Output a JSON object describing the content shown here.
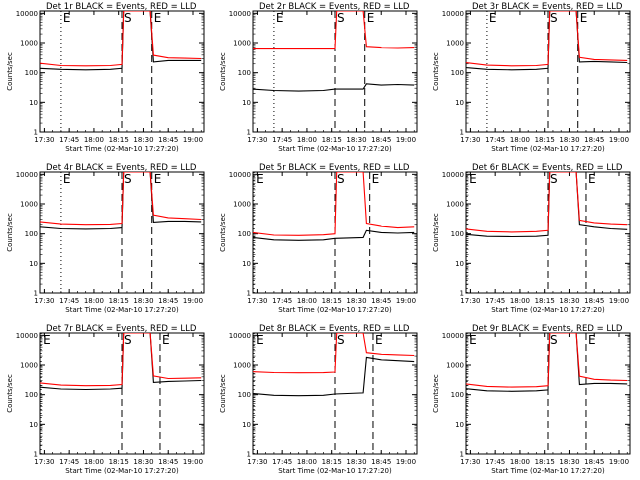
{
  "figure": {
    "colors": {
      "events": "#000000",
      "lld": "#ff0000",
      "axes": "#000000",
      "background": "#ffffff"
    },
    "xlabel": "Start Time (02-Mar-10 17:27:20)",
    "ylabel": "Counts/sec",
    "xticks": [
      "17:30",
      "17:45",
      "18:00",
      "18:15",
      "18:30",
      "18:45",
      "19:00"
    ],
    "yticks": [
      "1",
      "10",
      "100",
      "1000",
      "10000"
    ]
  },
  "chart_data": [
    {
      "type": "line",
      "title": "Det 1r BLACK = Events, RED = LLD",
      "x_range": [
        "17:27:20",
        "19:06:40"
      ],
      "y_range": [
        1,
        12000
      ],
      "y_scale": "log",
      "xticks": [
        "17:30",
        "17:45",
        "18:00",
        "18:15",
        "18:30",
        "18:45",
        "19:00"
      ],
      "yticks": [
        "1",
        "10",
        "100",
        "1000",
        "10000"
      ],
      "markers": {
        "E_1": "17:40",
        "S": "18:17",
        "E_2": "18:35"
      },
      "series": [
        {
          "name": "Events",
          "color": "#000000",
          "x": [
            "17:27",
            "17:40",
            "17:55",
            "18:10",
            "18:17",
            "18:18",
            "18:30",
            "18:34",
            "18:36",
            "18:45",
            "18:55",
            "19:05"
          ],
          "y": [
            140,
            130,
            125,
            130,
            140,
            12000,
            12000,
            12000,
            230,
            260,
            260,
            260
          ]
        },
        {
          "name": "LLD",
          "color": "#ff0000",
          "x": [
            "17:27",
            "17:40",
            "17:55",
            "18:10",
            "18:17",
            "18:18",
            "18:30",
            "18:34",
            "18:36",
            "18:45",
            "18:55",
            "19:05"
          ],
          "y": [
            210,
            175,
            170,
            175,
            190,
            12000,
            12000,
            12000,
            390,
            320,
            310,
            300
          ]
        }
      ]
    },
    {
      "type": "line",
      "title": "Det 2r BLACK = Events, RED = LLD",
      "x_range": [
        "17:27:20",
        "19:06:40"
      ],
      "y_range": [
        1,
        12000
      ],
      "y_scale": "log",
      "xticks": [
        "17:30",
        "17:45",
        "18:00",
        "18:15",
        "18:30",
        "18:45",
        "19:00"
      ],
      "yticks": [
        "1",
        "10",
        "100",
        "1000",
        "10000"
      ],
      "markers": {
        "E_1": "17:40",
        "S": "18:17",
        "E_2": "18:35"
      },
      "series": [
        {
          "name": "Events",
          "color": "#000000",
          "x": [
            "17:27",
            "17:40",
            "17:55",
            "18:10",
            "18:17",
            "18:34",
            "18:36",
            "18:45",
            "18:55",
            "19:05"
          ],
          "y": [
            28,
            25,
            24,
            25,
            28,
            28,
            42,
            38,
            40,
            38
          ]
        },
        {
          "name": "LLD",
          "color": "#ff0000",
          "x": [
            "17:27",
            "17:40",
            "17:55",
            "18:10",
            "18:17",
            "18:18",
            "18:30",
            "18:34",
            "18:36",
            "18:45",
            "18:55",
            "19:05"
          ],
          "y": [
            650,
            650,
            650,
            650,
            650,
            12000,
            12000,
            12000,
            750,
            700,
            680,
            700
          ]
        }
      ]
    },
    {
      "type": "line",
      "title": "Det 3r BLACK = Events, RED = LLD",
      "x_range": [
        "17:27:20",
        "19:06:40"
      ],
      "y_range": [
        1,
        12000
      ],
      "y_scale": "log",
      "xticks": [
        "17:30",
        "17:45",
        "18:00",
        "18:15",
        "18:30",
        "18:45",
        "19:00"
      ],
      "yticks": [
        "1",
        "10",
        "100",
        "1000",
        "10000"
      ],
      "markers": {
        "E_1": "17:40",
        "S": "18:17",
        "E_2": "18:35"
      },
      "series": [
        {
          "name": "Events",
          "color": "#000000",
          "x": [
            "17:27",
            "17:40",
            "17:55",
            "18:10",
            "18:17",
            "18:18",
            "18:30",
            "18:34",
            "18:36",
            "18:45",
            "18:55",
            "19:05"
          ],
          "y": [
            150,
            130,
            125,
            130,
            140,
            12000,
            12000,
            12000,
            230,
            240,
            230,
            220
          ]
        },
        {
          "name": "LLD",
          "color": "#ff0000",
          "x": [
            "17:27",
            "17:40",
            "17:55",
            "18:10",
            "18:17",
            "18:18",
            "18:30",
            "18:34",
            "18:36",
            "18:45",
            "18:55",
            "19:05"
          ],
          "y": [
            220,
            180,
            170,
            175,
            190,
            12000,
            12000,
            12000,
            330,
            280,
            270,
            260
          ]
        }
      ]
    },
    {
      "type": "line",
      "title": "Det 4r BLACK = Events, RED = LLD",
      "x_range": [
        "17:27:20",
        "19:06:40"
      ],
      "y_range": [
        1,
        12000
      ],
      "y_scale": "log",
      "xticks": [
        "17:30",
        "17:45",
        "18:00",
        "18:15",
        "18:30",
        "18:45",
        "19:00"
      ],
      "yticks": [
        "1",
        "10",
        "100",
        "1000",
        "10000"
      ],
      "markers": {
        "E_1": "17:40",
        "S": "18:17",
        "E_2": "18:35"
      },
      "series": [
        {
          "name": "Events",
          "color": "#000000",
          "x": [
            "17:27",
            "17:40",
            "17:55",
            "18:10",
            "18:17",
            "18:18",
            "18:30",
            "18:34",
            "18:36",
            "18:45",
            "18:55",
            "19:05"
          ],
          "y": [
            170,
            150,
            145,
            150,
            160,
            12000,
            12000,
            12000,
            240,
            260,
            260,
            250
          ]
        },
        {
          "name": "LLD",
          "color": "#ff0000",
          "x": [
            "17:27",
            "17:40",
            "17:55",
            "18:10",
            "18:17",
            "18:18",
            "18:30",
            "18:34",
            "18:36",
            "18:45",
            "18:55",
            "19:05"
          ],
          "y": [
            250,
            210,
            200,
            205,
            220,
            12000,
            12000,
            12000,
            420,
            340,
            320,
            300
          ]
        }
      ]
    },
    {
      "type": "line",
      "title": "Det 5r BLACK = Events, RED = LLD",
      "x_range": [
        "17:27:20",
        "19:06:40"
      ],
      "y_range": [
        1,
        12000
      ],
      "y_scale": "log",
      "xticks": [
        "17:30",
        "17:45",
        "18:00",
        "18:15",
        "18:30",
        "18:45",
        "19:00"
      ],
      "yticks": [
        "1",
        "10",
        "100",
        "1000",
        "10000"
      ],
      "markers": {
        "E_1": "17:28",
        "S": "18:17",
        "E_2": "18:38"
      },
      "series": [
        {
          "name": "Events",
          "color": "#000000",
          "x": [
            "17:27",
            "17:40",
            "17:55",
            "18:10",
            "18:17",
            "18:34",
            "18:36",
            "18:45",
            "18:55",
            "19:05"
          ],
          "y": [
            75,
            62,
            60,
            62,
            70,
            75,
            130,
            110,
            105,
            110
          ]
        },
        {
          "name": "LLD",
          "color": "#ff0000",
          "x": [
            "17:27",
            "17:40",
            "17:55",
            "18:10",
            "18:17",
            "18:18",
            "18:30",
            "18:34",
            "18:36",
            "18:45",
            "18:55",
            "19:05"
          ],
          "y": [
            110,
            90,
            88,
            92,
            100,
            12000,
            12000,
            12000,
            220,
            180,
            160,
            170
          ]
        }
      ]
    },
    {
      "type": "line",
      "title": "Det 6r BLACK = Events, RED = LLD",
      "x_range": [
        "17:27:20",
        "19:06:40"
      ],
      "y_range": [
        1,
        12000
      ],
      "y_scale": "log",
      "xticks": [
        "17:30",
        "17:45",
        "18:00",
        "18:15",
        "18:30",
        "18:45",
        "19:00"
      ],
      "yticks": [
        "1",
        "10",
        "100",
        "1000",
        "10000"
      ],
      "markers": {
        "E_1": "17:28",
        "S": "18:17",
        "E_2": "18:40"
      },
      "series": [
        {
          "name": "Events",
          "color": "#000000",
          "x": [
            "17:27",
            "17:40",
            "17:55",
            "18:10",
            "18:17",
            "18:18",
            "18:30",
            "18:34",
            "18:36",
            "18:45",
            "18:55",
            "19:05"
          ],
          "y": [
            95,
            82,
            80,
            82,
            88,
            12000,
            12000,
            12000,
            200,
            170,
            150,
            140
          ]
        },
        {
          "name": "LLD",
          "color": "#ff0000",
          "x": [
            "17:27",
            "17:40",
            "17:55",
            "18:10",
            "18:17",
            "18:18",
            "18:30",
            "18:34",
            "18:36",
            "18:45",
            "18:55",
            "19:05"
          ],
          "y": [
            145,
            120,
            115,
            120,
            130,
            12000,
            12000,
            12000,
            280,
            230,
            210,
            200
          ]
        }
      ]
    },
    {
      "type": "line",
      "title": "Det 7r BLACK = Events, RED = LLD",
      "x_range": [
        "17:27:20",
        "19:06:40"
      ],
      "y_range": [
        1,
        12000
      ],
      "y_scale": "log",
      "xticks": [
        "17:30",
        "17:45",
        "18:00",
        "18:15",
        "18:30",
        "18:45",
        "19:00"
      ],
      "yticks": [
        "1",
        "10",
        "100",
        "1000",
        "10000"
      ],
      "markers": {
        "E_1": "17:28",
        "S": "18:17",
        "E_2": "18:40"
      },
      "series": [
        {
          "name": "Events",
          "color": "#000000",
          "x": [
            "17:27",
            "17:40",
            "17:55",
            "18:10",
            "18:17",
            "18:18",
            "18:30",
            "18:34",
            "18:36",
            "18:45",
            "18:55",
            "19:05"
          ],
          "y": [
            180,
            155,
            150,
            155,
            165,
            12000,
            12000,
            12000,
            260,
            280,
            290,
            300
          ]
        },
        {
          "name": "LLD",
          "color": "#ff0000",
          "x": [
            "17:27",
            "17:40",
            "17:55",
            "18:10",
            "18:17",
            "18:18",
            "18:30",
            "18:34",
            "18:36",
            "18:45",
            "18:55",
            "19:05"
          ],
          "y": [
            250,
            210,
            200,
            205,
            220,
            12000,
            12000,
            12000,
            430,
            350,
            360,
            370
          ]
        }
      ]
    },
    {
      "type": "line",
      "title": "Det 8r BLACK = Events, RED = LLD",
      "x_range": [
        "17:27:20",
        "19:06:40"
      ],
      "y_range": [
        1,
        12000
      ],
      "y_scale": "log",
      "xticks": [
        "17:30",
        "17:45",
        "18:00",
        "18:15",
        "18:30",
        "18:45",
        "19:00"
      ],
      "yticks": [
        "1",
        "10",
        "100",
        "1000",
        "10000"
      ],
      "markers": {
        "E_1": "17:28",
        "S": "18:17",
        "E_2": "18:40"
      },
      "series": [
        {
          "name": "Events",
          "color": "#000000",
          "x": [
            "17:27",
            "17:40",
            "17:55",
            "18:10",
            "18:17",
            "18:34",
            "18:36",
            "18:45",
            "18:55",
            "19:05"
          ],
          "y": [
            110,
            95,
            92,
            95,
            105,
            115,
            1800,
            1500,
            1400,
            1300
          ]
        },
        {
          "name": "LLD",
          "color": "#ff0000",
          "x": [
            "17:27",
            "17:40",
            "17:55",
            "18:10",
            "18:17",
            "18:18",
            "18:30",
            "18:34",
            "18:36",
            "18:45",
            "18:55",
            "19:05"
          ],
          "y": [
            600,
            560,
            550,
            555,
            580,
            12000,
            12000,
            12000,
            2600,
            2300,
            2200,
            2100
          ]
        }
      ]
    },
    {
      "type": "line",
      "title": "Det 9r BLACK = Events, RED = LLD",
      "x_range": [
        "17:27:20",
        "19:06:40"
      ],
      "y_range": [
        1,
        12000
      ],
      "y_scale": "log",
      "xticks": [
        "17:30",
        "17:45",
        "18:00",
        "18:15",
        "18:30",
        "18:45",
        "19:00"
      ],
      "yticks": [
        "1",
        "10",
        "100",
        "1000",
        "10000"
      ],
      "markers": {
        "E_1": "17:28",
        "S": "18:17",
        "E_2": "18:40"
      },
      "series": [
        {
          "name": "Events",
          "color": "#000000",
          "x": [
            "17:27",
            "17:40",
            "17:55",
            "18:10",
            "18:17",
            "18:18",
            "18:30",
            "18:34",
            "18:36",
            "18:45",
            "18:55",
            "19:05"
          ],
          "y": [
            160,
            135,
            130,
            135,
            145,
            12000,
            12000,
            12000,
            220,
            240,
            240,
            230
          ]
        },
        {
          "name": "LLD",
          "color": "#ff0000",
          "x": [
            "17:27",
            "17:40",
            "17:55",
            "18:10",
            "18:17",
            "18:18",
            "18:30",
            "18:34",
            "18:36",
            "18:45",
            "18:55",
            "19:05"
          ],
          "y": [
            230,
            190,
            180,
            185,
            200,
            12000,
            12000,
            12000,
            420,
            330,
            310,
            300
          ]
        }
      ]
    }
  ]
}
